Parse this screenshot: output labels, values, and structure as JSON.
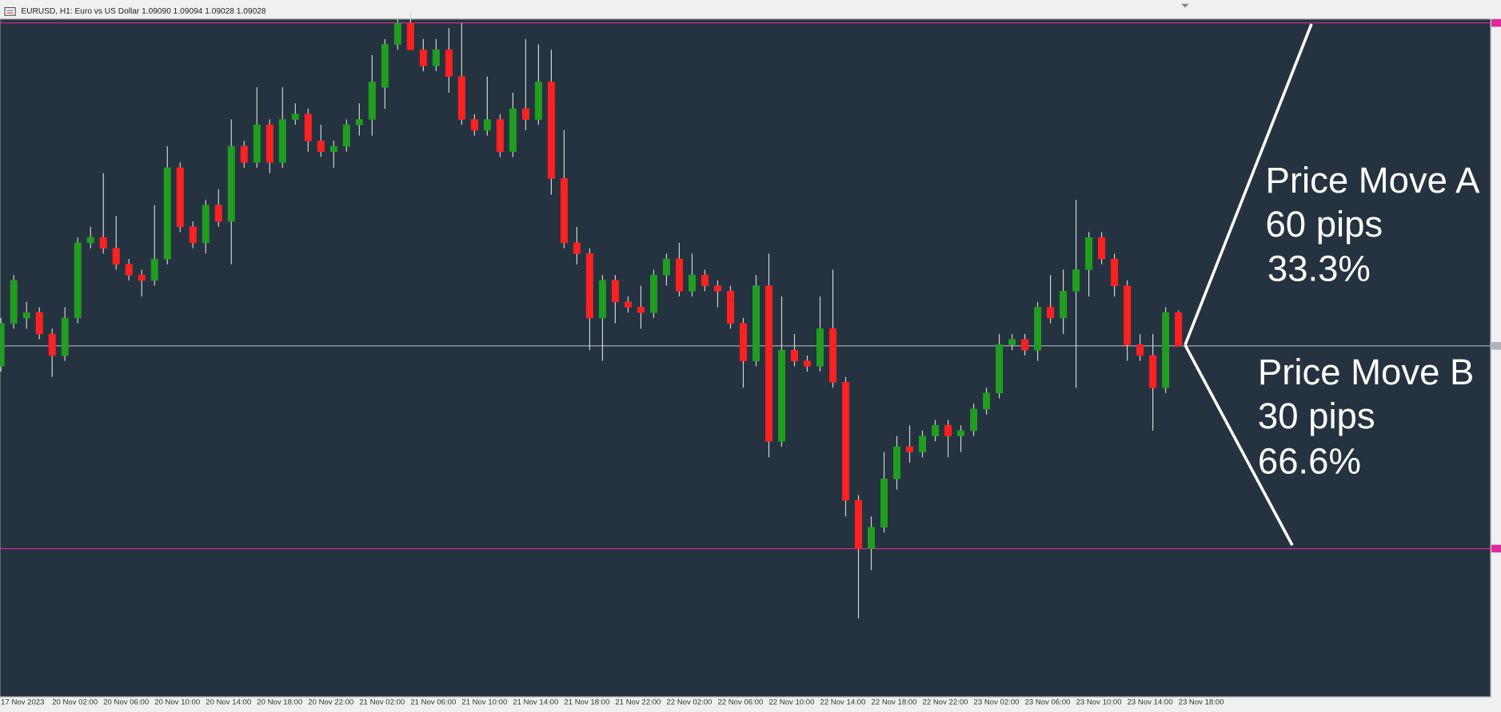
{
  "chart_data": {
    "type": "candlestick",
    "title": "EURUSD, H1:  Euro vs US Dollar  1.09090 1.09094 1.09028 1.09028",
    "categories": [
      "17 Nov 2023",
      null,
      null,
      null,
      "20 Nov 02:00",
      null,
      null,
      null,
      "20 Nov 06:00",
      null,
      null,
      null,
      "20 Nov 10:00",
      null,
      null,
      null,
      "20 Nov 14:00",
      null,
      null,
      null,
      "20 Nov 18:00",
      null,
      null,
      null,
      "20 Nov 22:00",
      null,
      null,
      null,
      "21 Nov 02:00",
      null,
      null,
      null,
      "21 Nov 06:00",
      null,
      null,
      null,
      "21 Nov 10:00",
      null,
      null,
      null,
      "21 Nov 14:00",
      null,
      null,
      null,
      "21 Nov 18:00",
      null,
      null,
      null,
      "21 Nov 22:00",
      null,
      null,
      null,
      "22 Nov 02:00",
      null,
      null,
      null,
      "22 Nov 06:00",
      null,
      null,
      null,
      "22 Nov 10:00",
      null,
      null,
      null,
      "22 Nov 14:00",
      null,
      null,
      null,
      "22 Nov 18:00",
      null,
      null,
      null,
      "22 Nov 22:00",
      null,
      null,
      null,
      "23 Nov 02:00",
      null,
      null,
      null,
      "23 Nov 06:00",
      null,
      null,
      null,
      "23 Nov 10:00",
      null,
      null,
      null,
      "23 Nov 14:00",
      null,
      null,
      null,
      "23 Nov 18:00"
    ],
    "ohlc": [
      [
        1.0899,
        1.0908,
        1.0898,
        1.0907
      ],
      [
        1.0907,
        1.0916,
        1.0906,
        1.0915
      ],
      [
        1.0908,
        1.0911,
        1.0906,
        1.0909
      ],
      [
        1.0909,
        1.091,
        1.0904,
        1.0905
      ],
      [
        1.0905,
        1.0906,
        1.0897,
        1.0901
      ],
      [
        1.0901,
        1.091,
        1.09,
        1.0908
      ],
      [
        1.0908,
        1.0923,
        1.0907,
        1.0922
      ],
      [
        1.0922,
        1.0925,
        1.0921,
        1.0923
      ],
      [
        1.0923,
        1.0935,
        1.092,
        1.0921
      ],
      [
        1.0921,
        1.0927,
        1.0917,
        1.0918
      ],
      [
        1.0918,
        1.0919,
        1.0915,
        1.0916
      ],
      [
        1.0916,
        1.0917,
        1.0912,
        1.0915
      ],
      [
        1.0915,
        1.0929,
        1.0914,
        1.0919
      ],
      [
        1.0919,
        1.094,
        1.0918,
        1.0936
      ],
      [
        1.0936,
        1.0937,
        1.0924,
        1.0925
      ],
      [
        1.0925,
        1.0926,
        1.0921,
        1.0922
      ],
      [
        1.0922,
        1.093,
        1.092,
        1.0929
      ],
      [
        1.0929,
        1.0932,
        1.0925,
        1.0926
      ],
      [
        1.0926,
        1.0945,
        1.0918,
        1.094
      ],
      [
        1.094,
        1.0941,
        1.0936,
        1.0937
      ],
      [
        1.0937,
        1.0951,
        1.0936,
        1.0944
      ],
      [
        1.0944,
        1.0945,
        1.0935,
        1.0937
      ],
      [
        1.0937,
        1.0951,
        1.0936,
        1.0945
      ],
      [
        1.0945,
        1.0948,
        1.0944,
        1.0946
      ],
      [
        1.0946,
        1.0947,
        1.0939,
        1.0941
      ],
      [
        1.0941,
        1.0944,
        1.0938,
        1.0939
      ],
      [
        1.0939,
        1.0941,
        1.0936,
        1.094
      ],
      [
        1.094,
        1.0945,
        1.0939,
        1.0944
      ],
      [
        1.0944,
        1.0948,
        1.0942,
        1.0945
      ],
      [
        1.0945,
        1.0957,
        1.0942,
        1.0952
      ],
      [
        1.0951,
        1.096,
        1.0947,
        1.0959
      ],
      [
        1.0959,
        1.0964,
        1.0958,
        1.0963
      ],
      [
        1.0963,
        1.0965,
        1.0958,
        1.0958
      ],
      [
        1.0958,
        1.096,
        1.0954,
        1.0955
      ],
      [
        1.0955,
        1.096,
        1.0954,
        1.0958
      ],
      [
        1.0958,
        1.0962,
        1.095,
        1.0953
      ],
      [
        1.0953,
        1.0963,
        1.0944,
        1.0945
      ],
      [
        1.0945,
        1.0946,
        1.0942,
        1.0943
      ],
      [
        1.0943,
        1.0953,
        1.0942,
        1.0945
      ],
      [
        1.0945,
        1.0946,
        1.0938,
        1.0939
      ],
      [
        1.0939,
        1.095,
        1.0938,
        1.0947
      ],
      [
        1.0947,
        1.096,
        1.0943,
        1.0945
      ],
      [
        1.0945,
        1.0959,
        1.0944,
        1.0952
      ],
      [
        1.0952,
        1.0958,
        1.0931,
        1.0934
      ],
      [
        1.0934,
        1.0943,
        1.0921,
        1.0922
      ],
      [
        1.0922,
        1.0925,
        1.0918,
        1.092
      ],
      [
        1.092,
        1.0921,
        1.0902,
        1.0908
      ],
      [
        1.0908,
        1.0916,
        1.09,
        1.0915
      ],
      [
        1.0915,
        1.0916,
        1.0907,
        1.0911
      ],
      [
        1.0911,
        1.0912,
        1.0909,
        1.091
      ],
      [
        1.091,
        1.0914,
        1.0906,
        1.0909
      ],
      [
        1.0909,
        1.0917,
        1.0908,
        1.0916
      ],
      [
        1.0916,
        1.092,
        1.0914,
        1.0919
      ],
      [
        1.0919,
        1.0922,
        1.0912,
        1.0913
      ],
      [
        1.0913,
        1.092,
        1.0912,
        1.0916
      ],
      [
        1.0916,
        1.0917,
        1.0913,
        1.0914
      ],
      [
        1.0914,
        1.0915,
        1.091,
        1.0913
      ],
      [
        1.0913,
        1.0914,
        1.0906,
        1.0907
      ],
      [
        1.0907,
        1.0908,
        1.0895,
        1.09
      ],
      [
        1.09,
        1.0916,
        1.0899,
        1.0914
      ],
      [
        1.0914,
        1.092,
        1.0882,
        1.0885
      ],
      [
        1.0885,
        1.0912,
        1.0884,
        1.0902
      ],
      [
        1.0902,
        1.0905,
        1.0899,
        1.09
      ],
      [
        1.09,
        1.0901,
        1.0898,
        1.0899
      ],
      [
        1.0899,
        1.0912,
        1.0898,
        1.0906
      ],
      [
        1.0906,
        1.0917,
        1.0895,
        1.0896
      ],
      [
        1.0896,
        1.0897,
        1.0871,
        1.0874
      ],
      [
        1.0874,
        1.0875,
        1.0852,
        1.0865
      ],
      [
        1.0865,
        1.0871,
        1.0861,
        1.0869
      ],
      [
        1.0869,
        1.0883,
        1.0868,
        1.0878
      ],
      [
        1.0878,
        1.0886,
        1.0876,
        1.0884
      ],
      [
        1.0884,
        1.0888,
        1.0881,
        1.0883
      ],
      [
        1.0883,
        1.0887,
        1.0882,
        1.0886
      ],
      [
        1.0886,
        1.0889,
        1.0885,
        1.0888
      ],
      [
        1.0888,
        1.0889,
        1.0882,
        1.0886
      ],
      [
        1.0886,
        1.0888,
        1.0883,
        1.0887
      ],
      [
        1.0887,
        1.0892,
        1.0886,
        1.0891
      ],
      [
        1.0891,
        1.0895,
        1.089,
        1.0894
      ],
      [
        1.0894,
        1.0905,
        1.0893,
        1.0903
      ],
      [
        1.0903,
        1.0905,
        1.0902,
        1.0904
      ],
      [
        1.0904,
        1.0905,
        1.0901,
        1.0902
      ],
      [
        1.0902,
        1.0911,
        1.09,
        1.091
      ],
      [
        1.091,
        1.0916,
        1.0907,
        1.0908
      ],
      [
        1.0908,
        1.0917,
        1.0905,
        1.0913
      ],
      [
        1.0913,
        1.093,
        1.0895,
        1.0917
      ],
      [
        1.0917,
        1.0924,
        1.0912,
        1.0923
      ],
      [
        1.0923,
        1.0924,
        1.0918,
        1.0919
      ],
      [
        1.0919,
        1.092,
        1.0912,
        1.0914
      ],
      [
        1.0914,
        1.0915,
        1.09,
        1.0903
      ],
      [
        1.0903,
        1.0905,
        1.09,
        1.0901
      ],
      [
        1.0901,
        1.0905,
        1.0887,
        1.0895
      ],
      [
        1.0895,
        1.091,
        1.0894,
        1.0909
      ],
      [
        1.0909,
        1.09094,
        1.09028,
        1.09028
      ]
    ],
    "ylim": [
      1.08374,
      1.09637
    ],
    "up_color": "#1f9e1f",
    "down_color": "#ff2020",
    "wick_color": "#cfd3d6",
    "background": "#253340",
    "levels": [
      {
        "value": 1.0963,
        "color": "#e0289c"
      },
      {
        "value": 1.0865,
        "color": "#e0289c"
      },
      {
        "value": 1.09028,
        "color": "#aeb5bc"
      }
    ],
    "annotations": [
      {
        "lines": [
          "Price Move A",
          "60 pips",
          "33.3%"
        ]
      },
      {
        "lines": [
          "Price Move B",
          "30 pips",
          "66.6%"
        ]
      }
    ]
  }
}
